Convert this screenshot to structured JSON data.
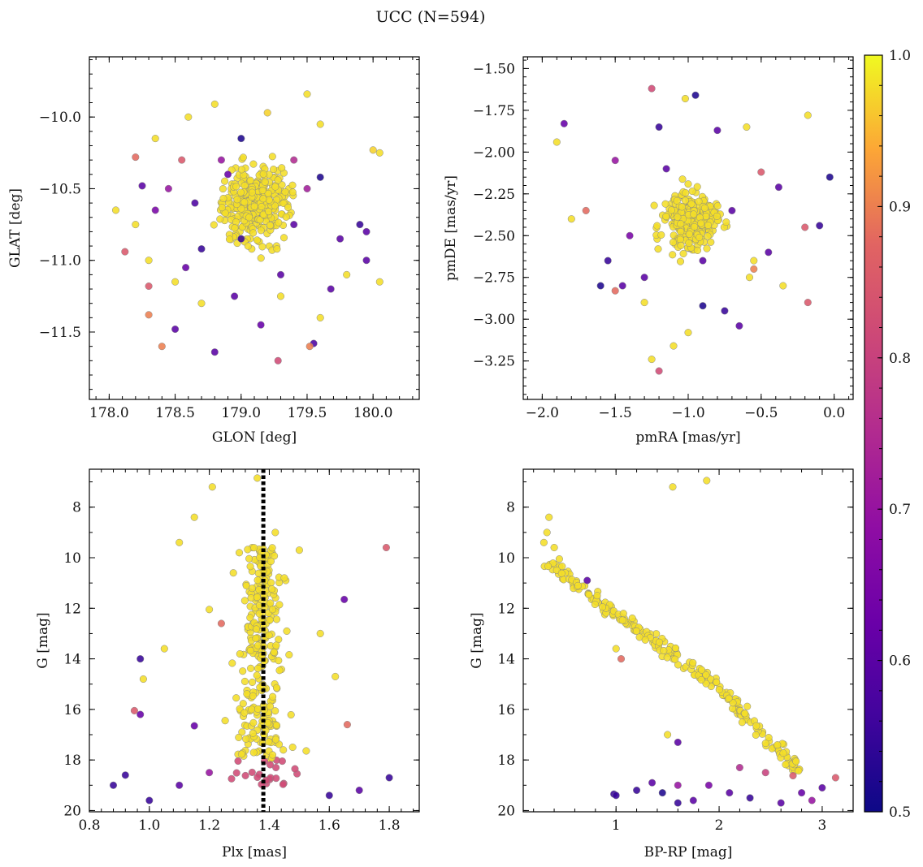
{
  "figure": {
    "title": "UCC (N=594)"
  },
  "colorbar": {
    "min": 0.5,
    "max": 1.0,
    "ticks": [
      0.5,
      0.6,
      0.7,
      0.8,
      0.9,
      1.0
    ],
    "tick_labels": [
      "0.5",
      "0.6",
      "0.7",
      "0.8",
      "0.9",
      "1.0"
    ],
    "colormap": "plasma"
  },
  "chart_data": [
    {
      "type": "scatter",
      "panel": "top-left",
      "xlabel": "GLON [deg]",
      "ylabel": "GLAT [deg]",
      "xlim": [
        177.85,
        180.35
      ],
      "ylim": [
        -11.97,
        -9.58
      ],
      "xticks": [
        178.0,
        178.5,
        179.0,
        179.5,
        180.0
      ],
      "xtick_labels": [
        "178.0",
        "178.5",
        "179.0",
        "179.5",
        "180.0"
      ],
      "yticks": [
        -10.0,
        -10.5,
        -11.0,
        -11.5
      ],
      "ytick_labels": [
        "−10.0",
        "−10.5",
        "−11.0",
        "−11.5"
      ],
      "points": [
        [
          179.5,
          -9.84,
          0.98
        ],
        [
          178.8,
          -9.91,
          0.98
        ],
        [
          178.6,
          -10.0,
          0.98
        ],
        [
          179.2,
          -9.97,
          0.97
        ],
        [
          179.0,
          -10.15,
          0.52
        ],
        [
          180.0,
          -10.23,
          0.97
        ],
        [
          178.2,
          -10.28,
          0.88
        ],
        [
          178.55,
          -10.3,
          0.85
        ],
        [
          178.9,
          -10.4,
          0.62
        ],
        [
          179.6,
          -10.42,
          0.52
        ],
        [
          178.25,
          -10.48,
          0.6
        ],
        [
          178.35,
          -10.65,
          0.65
        ],
        [
          178.7,
          -10.92,
          0.55
        ],
        [
          179.9,
          -10.75,
          0.55
        ],
        [
          178.12,
          -10.94,
          0.85
        ],
        [
          178.8,
          -11.64,
          0.6
        ],
        [
          179.28,
          -11.7,
          0.82
        ],
        [
          179.55,
          -11.58,
          0.58
        ],
        [
          179.52,
          -11.6,
          0.9
        ],
        [
          178.4,
          -11.6,
          0.9
        ],
        [
          178.3,
          -11.38,
          0.9
        ],
        [
          178.5,
          -11.48,
          0.6
        ],
        [
          179.3,
          -11.1,
          0.6
        ],
        [
          179.95,
          -11.0,
          0.6
        ],
        [
          178.3,
          -11.18,
          0.85
        ],
        [
          179.68,
          -11.2,
          0.6
        ],
        [
          178.58,
          -11.05,
          0.62
        ],
        [
          179.0,
          -10.85,
          0.55
        ],
        [
          179.4,
          -10.75,
          0.6
        ],
        [
          179.5,
          -10.5,
          0.72
        ],
        [
          178.45,
          -10.5,
          0.7
        ],
        [
          179.75,
          -10.85,
          0.6
        ],
        [
          179.95,
          -10.8,
          0.6
        ],
        [
          178.95,
          -11.25,
          0.6
        ],
        [
          179.15,
          -11.45,
          0.62
        ],
        [
          179.4,
          -10.3,
          0.75
        ],
        [
          178.65,
          -10.6,
          0.58
        ],
        [
          178.85,
          -10.3,
          0.7
        ],
        [
          178.05,
          -10.65,
          0.98
        ],
        [
          180.05,
          -10.25,
          0.98
        ],
        [
          178.2,
          -10.75,
          0.98
        ],
        [
          179.6,
          -11.4,
          0.98
        ],
        [
          178.7,
          -11.3,
          0.98
        ],
        [
          179.3,
          -11.25,
          0.98
        ],
        [
          178.5,
          -11.15,
          0.98
        ],
        [
          179.8,
          -11.1,
          0.98
        ],
        [
          180.05,
          -11.15,
          0.98
        ],
        [
          178.3,
          -11.0,
          0.98
        ],
        [
          179.6,
          -10.05,
          0.98
        ],
        [
          178.35,
          -10.15,
          0.98
        ]
      ]
    },
    {
      "type": "scatter",
      "panel": "top-right",
      "xlabel": "pmRA [mas/yr]",
      "ylabel": "pmDE [mas/yr]",
      "xlim": [
        -2.13,
        0.13
      ],
      "ylim": [
        -3.48,
        -1.43
      ],
      "xticks": [
        -2.0,
        -1.5,
        -1.0,
        -0.5,
        0.0
      ],
      "xtick_labels": [
        "−2.0",
        "−1.5",
        "−1.0",
        "−0.5",
        "0.0"
      ],
      "yticks": [
        -1.5,
        -1.75,
        -2.0,
        -2.25,
        -2.5,
        -2.75,
        -3.0,
        -3.25
      ],
      "ytick_labels": [
        "−1.50",
        "−1.75",
        "−2.00",
        "−2.25",
        "−2.50",
        "−2.75",
        "−3.00",
        "−3.25"
      ],
      "points": [
        [
          -1.25,
          -1.62,
          0.82
        ],
        [
          -0.95,
          -1.66,
          0.52
        ],
        [
          -1.02,
          -1.68,
          0.98
        ],
        [
          -1.85,
          -1.83,
          0.62
        ],
        [
          -1.9,
          -1.94,
          0.98
        ],
        [
          -0.18,
          -1.78,
          0.98
        ],
        [
          -0.03,
          -2.15,
          0.52
        ],
        [
          -0.8,
          -1.87,
          0.6
        ],
        [
          -1.2,
          -1.85,
          0.55
        ],
        [
          -0.6,
          -1.85,
          0.98
        ],
        [
          -1.55,
          -2.65,
          0.55
        ],
        [
          -1.6,
          -2.8,
          0.52
        ],
        [
          -1.45,
          -2.8,
          0.6
        ],
        [
          -1.2,
          -3.31,
          0.82
        ],
        [
          -0.75,
          -2.95,
          0.55
        ],
        [
          -0.9,
          -2.92,
          0.52
        ],
        [
          -0.65,
          -3.04,
          0.6
        ],
        [
          -0.1,
          -2.44,
          0.55
        ],
        [
          -0.2,
          -2.45,
          0.85
        ],
        [
          -0.18,
          -2.9,
          0.85
        ],
        [
          -0.45,
          -2.6,
          0.6
        ],
        [
          -0.55,
          -2.7,
          0.9
        ],
        [
          -1.5,
          -2.83,
          0.88
        ],
        [
          -0.55,
          -2.65,
          0.98
        ],
        [
          -1.7,
          -2.35,
          0.88
        ],
        [
          -1.3,
          -2.75,
          0.6
        ],
        [
          -1.8,
          -2.4,
          0.98
        ],
        [
          -0.35,
          -2.8,
          0.98
        ],
        [
          -0.38,
          -2.21,
          0.6
        ],
        [
          -0.5,
          -2.12,
          0.85
        ],
        [
          -1.4,
          -2.5,
          0.65
        ],
        [
          -0.7,
          -2.35,
          0.6
        ],
        [
          -1.5,
          -2.05,
          0.7
        ],
        [
          -1.25,
          -3.24,
          0.98
        ],
        [
          -1.1,
          -3.16,
          0.98
        ],
        [
          -1.0,
          -3.08,
          0.98
        ],
        [
          -1.3,
          -2.9,
          0.98
        ],
        [
          -1.15,
          -2.1,
          0.6
        ],
        [
          -0.9,
          -2.65,
          0.6
        ],
        [
          -0.58,
          -2.75,
          0.98
        ]
      ]
    },
    {
      "type": "scatter",
      "panel": "bottom-left",
      "xlabel": "Plx [mas]",
      "ylabel": "G [mag]",
      "xlim": [
        0.8,
        1.9
      ],
      "ylim": [
        20.05,
        6.5
      ],
      "y_inverted": true,
      "xticks": [
        0.8,
        1.0,
        1.2,
        1.4,
        1.6,
        1.8
      ],
      "xtick_labels": [
        "0.8",
        "1.0",
        "1.2",
        "1.4",
        "1.6",
        "1.8"
      ],
      "yticks": [
        8,
        10,
        12,
        14,
        16,
        18,
        20
      ],
      "ytick_labels": [
        "8",
        "10",
        "12",
        "14",
        "16",
        "18",
        "20"
      ],
      "reference_line": {
        "x": 1.38,
        "style": "dotted"
      },
      "points": [
        [
          1.36,
          6.85,
          0.98
        ],
        [
          1.21,
          7.2,
          0.98
        ],
        [
          1.15,
          8.4,
          0.98
        ],
        [
          1.1,
          9.4,
          0.98
        ],
        [
          1.79,
          9.6,
          0.85
        ],
        [
          1.05,
          13.6,
          0.98
        ],
        [
          0.97,
          14.0,
          0.55
        ],
        [
          0.98,
          14.8,
          0.98
        ],
        [
          0.95,
          16.05,
          0.85
        ],
        [
          0.97,
          16.2,
          0.62
        ],
        [
          1.65,
          11.65,
          0.62
        ],
        [
          1.24,
          12.6,
          0.88
        ],
        [
          1.2,
          12.05,
          0.98
        ],
        [
          1.57,
          13.0,
          0.98
        ],
        [
          1.62,
          14.7,
          0.98
        ],
        [
          1.66,
          16.6,
          0.88
        ],
        [
          1.15,
          16.65,
          0.62
        ],
        [
          1.3,
          9.8,
          0.98
        ],
        [
          1.42,
          9.0,
          0.98
        ],
        [
          1.5,
          9.7,
          0.98
        ],
        [
          1.28,
          10.6,
          0.98
        ],
        [
          1.45,
          10.8,
          0.98
        ],
        [
          1.8,
          18.7,
          0.55
        ],
        [
          0.88,
          19.0,
          0.55
        ],
        [
          0.92,
          18.6,
          0.55
        ],
        [
          1.0,
          19.6,
          0.55
        ],
        [
          1.7,
          19.2,
          0.6
        ],
        [
          1.6,
          19.4,
          0.55
        ],
        [
          1.1,
          19.0,
          0.6
        ],
        [
          1.2,
          18.5,
          0.7
        ]
      ]
    },
    {
      "type": "scatter",
      "panel": "bottom-right",
      "xlabel": "BP-RP [mag]",
      "ylabel": "G [mag]",
      "xlim": [
        0.1,
        3.3
      ],
      "ylim": [
        20.05,
        6.5
      ],
      "y_inverted": true,
      "xticks": [
        1,
        2,
        3
      ],
      "xtick_labels": [
        "1",
        "2",
        "3"
      ],
      "yticks": [
        8,
        10,
        12,
        14,
        16,
        18,
        20
      ],
      "ytick_labels": [
        "8",
        "10",
        "12",
        "14",
        "16",
        "18",
        "20"
      ],
      "points": [
        [
          1.55,
          7.2,
          0.98
        ],
        [
          1.88,
          6.95,
          0.98
        ],
        [
          0.3,
          9.4,
          0.98
        ],
        [
          0.35,
          8.4,
          0.98
        ],
        [
          0.33,
          9.0,
          0.98
        ],
        [
          0.4,
          9.6,
          0.98
        ],
        [
          0.45,
          10.05,
          0.98
        ],
        [
          0.72,
          10.9,
          0.6
        ],
        [
          1.0,
          13.6,
          0.98
        ],
        [
          1.05,
          14.0,
          0.88
        ],
        [
          1.6,
          17.3,
          0.6
        ],
        [
          1.5,
          17.0,
          0.98
        ],
        [
          1.2,
          19.2,
          0.55
        ],
        [
          0.98,
          19.35,
          0.55
        ],
        [
          1.6,
          19.7,
          0.55
        ],
        [
          1.75,
          19.6,
          0.6
        ],
        [
          1.6,
          19.0,
          0.7
        ],
        [
          1.35,
          18.9,
          0.6
        ],
        [
          2.2,
          18.3,
          0.75
        ],
        [
          2.45,
          18.5,
          0.8
        ],
        [
          3.13,
          18.7,
          0.85
        ],
        [
          3.0,
          19.1,
          0.6
        ],
        [
          2.8,
          19.3,
          0.62
        ],
        [
          2.9,
          19.6,
          0.7
        ],
        [
          1.9,
          19.0,
          0.65
        ],
        [
          2.1,
          19.3,
          0.6
        ],
        [
          2.6,
          19.7,
          0.6
        ],
        [
          2.3,
          19.5,
          0.55
        ],
        [
          1.45,
          19.3,
          0.52
        ],
        [
          1.0,
          19.4,
          0.55
        ]
      ]
    }
  ]
}
